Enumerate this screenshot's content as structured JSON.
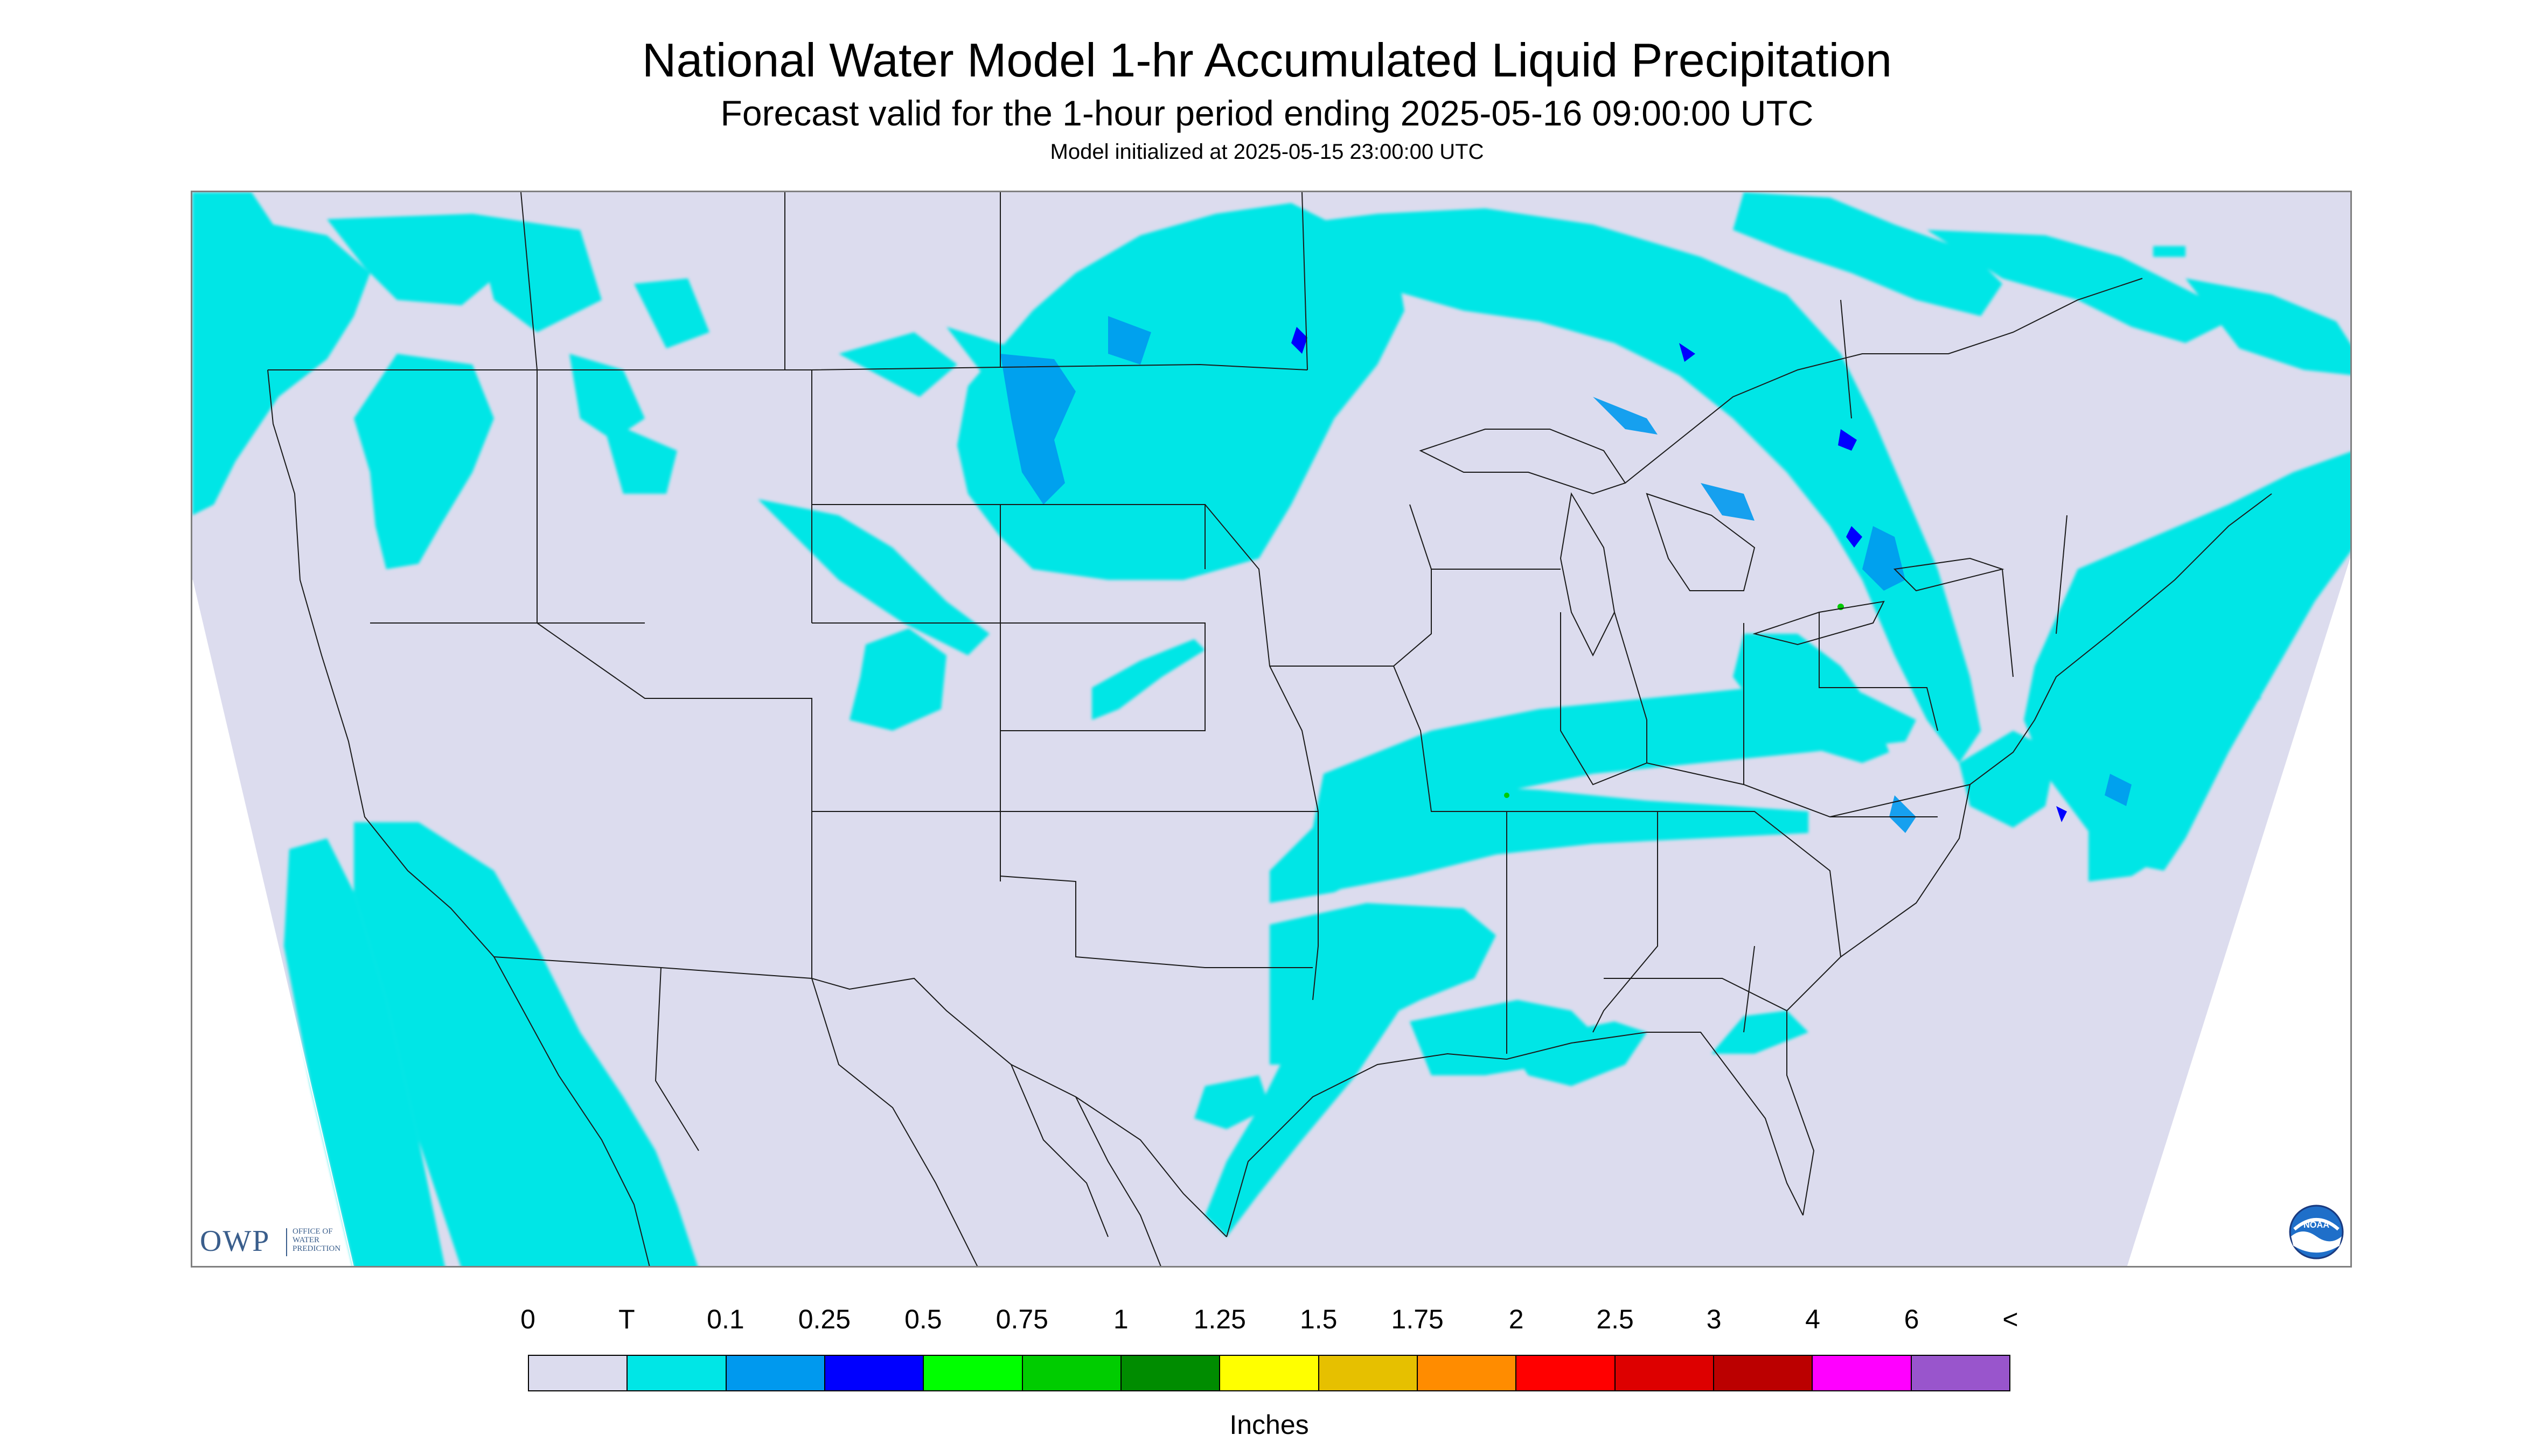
{
  "header": {
    "title": "National Water Model 1-hr Accumulated Liquid Precipitation",
    "subtitle": "Forecast valid for the 1-hour period ending 2025-05-16 09:00:00 UTC",
    "init": "Model initialized at 2025-05-15 23:00:00 UTC"
  },
  "map": {
    "background_color": "#dcdcee",
    "outside_domain_color": "#ffffff",
    "boundary_color": "#1a1a1a"
  },
  "logos": {
    "owp_letters": "OWP",
    "owp_text": "OFFICE OF\nWATER\nPREDICTION",
    "noaa_text": "NOAA"
  },
  "legend": {
    "labels": [
      "0",
      "T",
      "0.1",
      "0.25",
      "0.5",
      "0.75",
      "1",
      "1.25",
      "1.5",
      "1.75",
      "2",
      "2.5",
      "3",
      "4",
      "6",
      "<"
    ],
    "colors": [
      "#dcdcee",
      "#00e6e6",
      "#0099ee",
      "#0000ff",
      "#00ff00",
      "#00cc00",
      "#008c00",
      "#ffff00",
      "#e6c000",
      "#ff8c00",
      "#ff0000",
      "#dd0000",
      "#bb0000",
      "#ff00ff",
      "#9955cc"
    ],
    "units": "Inches"
  }
}
